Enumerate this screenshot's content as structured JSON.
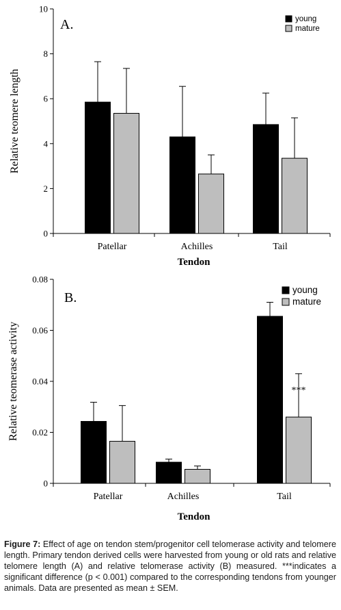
{
  "chart_data": [
    {
      "type": "bar",
      "panel_label": "A.",
      "categories": [
        "Patellar",
        "Achilles",
        "Tail"
      ],
      "series": [
        {
          "name": "young",
          "values": [
            5.85,
            4.3,
            4.85
          ],
          "errors": [
            1.8,
            2.25,
            1.4
          ],
          "color": "#000000"
        },
        {
          "name": "mature",
          "values": [
            5.35,
            2.65,
            3.35
          ],
          "errors": [
            2.0,
            0.85,
            1.8
          ],
          "color": "#bebebe"
        }
      ],
      "xlabel": "Tendon",
      "ylabel": "Relative teomere length",
      "ylim": [
        0,
        10
      ],
      "yticks": [
        "0",
        "2",
        "4",
        "6",
        "8",
        "10"
      ],
      "annotations": [],
      "legend_position": "top-right"
    },
    {
      "type": "bar",
      "panel_label": "B.",
      "categories": [
        "Patellar",
        "Achilles",
        "Tail"
      ],
      "series": [
        {
          "name": "young",
          "values": [
            0.0243,
            0.0083,
            0.0655
          ],
          "errors": [
            0.0075,
            0.0012,
            0.0055
          ],
          "color": "#000000"
        },
        {
          "name": "mature",
          "values": [
            0.0165,
            0.0055,
            0.026
          ],
          "errors": [
            0.014,
            0.0013,
            0.017
          ],
          "color": "#bebebe"
        }
      ],
      "xlabel": "Tendon",
      "ylabel": "Relative teomerase activity",
      "ylim": [
        0,
        0.08
      ],
      "yticks": [
        "0",
        "0.02",
        "0.04",
        "0.06",
        "0.08"
      ],
      "annotations": [
        {
          "text": "***",
          "category": "Tail",
          "series": "mature"
        }
      ],
      "legend_position": "top-right"
    }
  ],
  "caption": {
    "label": "Figure 7:",
    "text": "Effect of age on tendon stem/progenitor cell telomerase activity and telomere length. Primary tendon derived cells were harvested from young or old rats and relative telomere length (A) and relative telomerase activity (B) measured. ***indicates a significant difference (p < 0.001) compared to the corresponding tendons from younger animals. Data are presented as mean ± SEM."
  }
}
